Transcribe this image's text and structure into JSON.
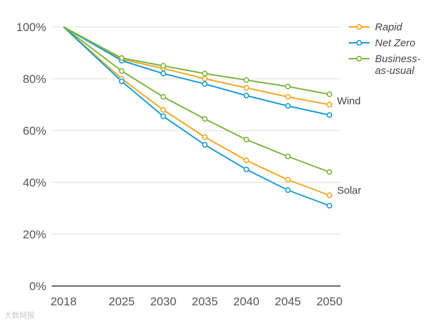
{
  "chart_data": {
    "type": "line",
    "x": [
      2018,
      2025,
      2030,
      2035,
      2040,
      2045,
      2050
    ],
    "ylim": [
      0,
      100
    ],
    "yticks": [
      0,
      20,
      40,
      60,
      80,
      100
    ],
    "ytick_labels": [
      "0%",
      "20%",
      "40%",
      "60%",
      "80%",
      "100%"
    ],
    "xtick_labels": [
      "2018",
      "2025",
      "2030",
      "2035",
      "2040",
      "2045",
      "2050"
    ],
    "grid": "horizontal",
    "legend": {
      "placement": "top-right",
      "entries": [
        {
          "label": "Rapid",
          "color": "#f5a623"
        },
        {
          "label": "Net Zero",
          "color": "#1a9bd7"
        },
        {
          "label": "Business-as-usual",
          "lines": [
            "Business-",
            "as-usual"
          ],
          "color": "#7cb342"
        }
      ]
    },
    "groups": [
      {
        "label": "Wind",
        "series": [
          {
            "scenario": "Rapid",
            "color": "#f5a623",
            "values": [
              100,
              87.5,
              84,
              80,
              76.5,
              73,
              70
            ]
          },
          {
            "scenario": "Net Zero",
            "color": "#1a9bd7",
            "values": [
              100,
              87,
              82,
              78,
              73.5,
              69.5,
              66
            ]
          },
          {
            "scenario": "Business-as-usual",
            "color": "#7cb342",
            "values": [
              100,
              88,
              85,
              82,
              79.5,
              77,
              74
            ]
          }
        ]
      },
      {
        "label": "Solar",
        "series": [
          {
            "scenario": "Rapid",
            "color": "#f5a623",
            "values": [
              100,
              80,
              68,
              57.5,
              48.5,
              41,
              35
            ]
          },
          {
            "scenario": "Net Zero",
            "color": "#1a9bd7",
            "values": [
              100,
              79,
              65.5,
              54.5,
              45,
              37,
              31
            ]
          },
          {
            "scenario": "Business-as-usual",
            "color": "#7cb342",
            "values": [
              100,
              83,
              73,
              64.5,
              56.5,
              50,
              44
            ]
          }
        ]
      }
    ]
  },
  "watermark": "大数网报"
}
